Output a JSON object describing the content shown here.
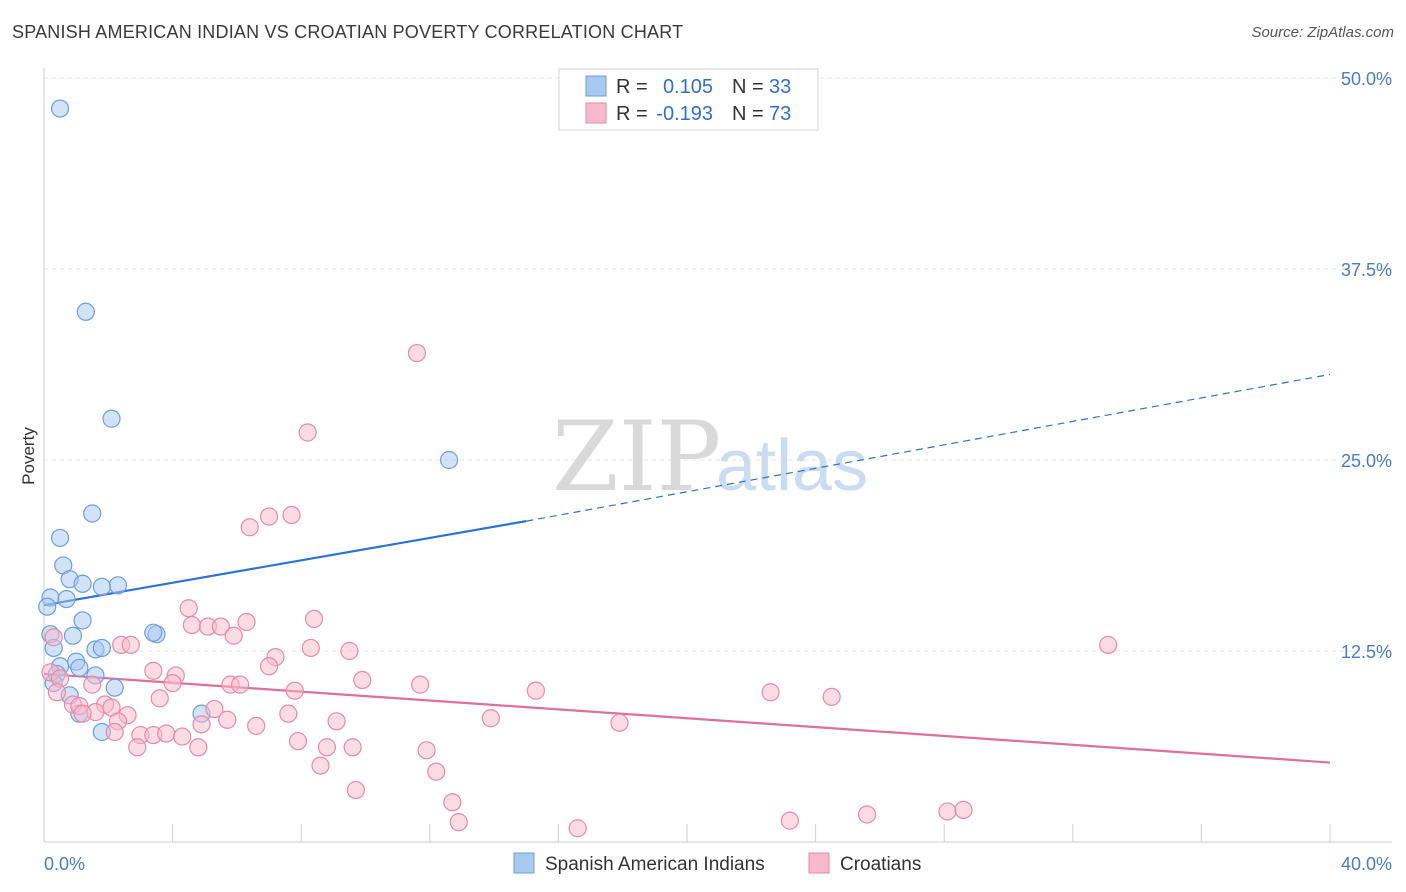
{
  "title": "SPANISH AMERICAN INDIAN VS CROATIAN POVERTY CORRELATION CHART",
  "source": "Source: ZipAtlas.com",
  "watermark": {
    "part1": "ZIP",
    "part2": "atlas"
  },
  "chart_data": {
    "type": "scatter",
    "title": "SPANISH AMERICAN INDIAN VS CROATIAN POVERTY CORRELATION CHART",
    "xlabel": "",
    "ylabel": "Poverty",
    "xlim": [
      0,
      40
    ],
    "ylim": [
      0,
      52
    ],
    "x_tick_labels": [
      {
        "value": 0,
        "label": "0.0%"
      },
      {
        "value": 40,
        "label": "40.0%"
      }
    ],
    "x_minor_ticks": [
      0,
      4,
      8,
      12,
      16,
      20,
      24,
      28,
      32,
      36,
      40
    ],
    "y_ticks": [
      {
        "value": 12.5,
        "label": "12.5%"
      },
      {
        "value": 25,
        "label": "25.0%"
      },
      {
        "value": 37.5,
        "label": "37.5%"
      },
      {
        "value": 50,
        "label": "50.0%"
      }
    ],
    "grid": true,
    "legend_position": "top-center",
    "legend": [
      {
        "name": "Spanish American Indians",
        "r_label": "R =",
        "r_value": "0.105",
        "n_label": "N =",
        "n_value": "33",
        "color": "#a8c8ee",
        "stroke": "#6d9ee0"
      },
      {
        "name": "Croatians",
        "r_label": "R =",
        "r_value": "-0.193",
        "n_label": "N =",
        "n_value": "73",
        "color": "#f7b9cc",
        "stroke": "#e88aa8"
      }
    ],
    "series": [
      {
        "name": "Spanish American Indians",
        "color": "#a8c8ee",
        "stroke": "#6d9ee0",
        "trend_color": "#2d72d2",
        "trend": {
          "x0": 0,
          "y0": 15.5,
          "x1": 15,
          "y1": 21.0,
          "x_dash_end": 40,
          "y_dash_end": 30.6
        },
        "points": [
          [
            0.5,
            48.0
          ],
          [
            1.3,
            34.7
          ],
          [
            2.1,
            27.7
          ],
          [
            12.6,
            25.0
          ],
          [
            1.5,
            21.5
          ],
          [
            0.5,
            19.9
          ],
          [
            0.6,
            18.1
          ],
          [
            0.8,
            17.2
          ],
          [
            1.2,
            16.9
          ],
          [
            2.3,
            16.8
          ],
          [
            1.8,
            16.7
          ],
          [
            0.2,
            16.0
          ],
          [
            0.7,
            15.9
          ],
          [
            0.1,
            15.4
          ],
          [
            1.2,
            14.5
          ],
          [
            0.2,
            13.6
          ],
          [
            0.9,
            13.5
          ],
          [
            3.5,
            13.6
          ],
          [
            3.4,
            13.7
          ],
          [
            1.6,
            12.6
          ],
          [
            1.8,
            12.7
          ],
          [
            0.3,
            12.7
          ],
          [
            0.5,
            11.5
          ],
          [
            1.0,
            11.8
          ],
          [
            1.1,
            11.4
          ],
          [
            0.4,
            11.0
          ],
          [
            1.6,
            10.9
          ],
          [
            0.3,
            10.4
          ],
          [
            2.2,
            10.1
          ],
          [
            0.8,
            9.6
          ],
          [
            1.1,
            8.4
          ],
          [
            4.9,
            8.4
          ],
          [
            1.8,
            7.2
          ]
        ]
      },
      {
        "name": "Croatians",
        "color": "#f7b9cc",
        "stroke": "#e88aa8",
        "trend_color": "#e0709a",
        "trend": {
          "x0": 0,
          "y0": 11.0,
          "x1": 40,
          "y1": 5.2
        },
        "points": [
          [
            11.6,
            32.0
          ],
          [
            8.2,
            26.8
          ],
          [
            7.7,
            21.4
          ],
          [
            7.0,
            21.3
          ],
          [
            6.4,
            20.6
          ],
          [
            4.5,
            15.3
          ],
          [
            8.4,
            14.6
          ],
          [
            6.3,
            14.4
          ],
          [
            4.6,
            14.2
          ],
          [
            5.1,
            14.1
          ],
          [
            5.5,
            14.1
          ],
          [
            5.9,
            13.5
          ],
          [
            0.3,
            13.4
          ],
          [
            2.4,
            12.9
          ],
          [
            2.7,
            12.9
          ],
          [
            8.3,
            12.7
          ],
          [
            9.5,
            12.5
          ],
          [
            7.2,
            12.1
          ],
          [
            33.1,
            12.9
          ],
          [
            7.0,
            11.5
          ],
          [
            3.4,
            11.2
          ],
          [
            0.2,
            11.1
          ],
          [
            4.1,
            10.9
          ],
          [
            0.5,
            10.7
          ],
          [
            4.0,
            10.4
          ],
          [
            1.5,
            10.3
          ],
          [
            5.8,
            10.3
          ],
          [
            6.1,
            10.3
          ],
          [
            9.9,
            10.6
          ],
          [
            11.7,
            10.3
          ],
          [
            15.3,
            9.9
          ],
          [
            22.6,
            9.8
          ],
          [
            0.4,
            9.8
          ],
          [
            7.8,
            9.9
          ],
          [
            24.5,
            9.5
          ],
          [
            0.9,
            9.0
          ],
          [
            1.1,
            8.9
          ],
          [
            3.6,
            9.4
          ],
          [
            1.9,
            9.0
          ],
          [
            2.1,
            8.8
          ],
          [
            5.3,
            8.7
          ],
          [
            1.6,
            8.5
          ],
          [
            1.2,
            8.4
          ],
          [
            7.6,
            8.4
          ],
          [
            2.6,
            8.3
          ],
          [
            13.9,
            8.1
          ],
          [
            2.3,
            7.9
          ],
          [
            5.7,
            8.0
          ],
          [
            9.1,
            7.9
          ],
          [
            17.9,
            7.8
          ],
          [
            4.9,
            7.7
          ],
          [
            6.6,
            7.6
          ],
          [
            2.2,
            7.2
          ],
          [
            3.0,
            7.0
          ],
          [
            3.4,
            7.0
          ],
          [
            3.8,
            7.1
          ],
          [
            4.3,
            6.9
          ],
          [
            7.9,
            6.6
          ],
          [
            2.9,
            6.2
          ],
          [
            4.8,
            6.2
          ],
          [
            8.8,
            6.2
          ],
          [
            9.6,
            6.2
          ],
          [
            11.9,
            6.0
          ],
          [
            8.6,
            5.0
          ],
          [
            12.2,
            4.6
          ],
          [
            9.7,
            3.4
          ],
          [
            12.7,
            2.6
          ],
          [
            28.1,
            2.0
          ],
          [
            12.9,
            1.3
          ],
          [
            23.2,
            1.4
          ],
          [
            25.6,
            1.8
          ],
          [
            16.6,
            0.9
          ],
          [
            28.6,
            2.1
          ]
        ]
      }
    ]
  }
}
